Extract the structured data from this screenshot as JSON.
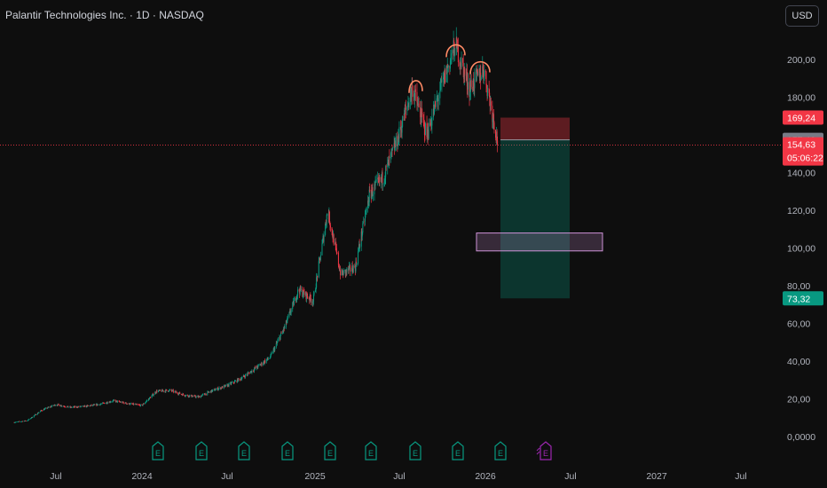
{
  "header": {
    "title": "Palantir Technologies Inc. · 1D · NASDAQ",
    "currency_button": "USD"
  },
  "chart_data": {
    "type": "candlestick",
    "title": "Palantir Technologies Inc. · 1D · NASDAQ",
    "ylim": [
      0,
      215
    ],
    "y_ticks": [
      "0,0000",
      "20,00",
      "40,00",
      "60,00",
      "80,00",
      "100,00",
      "120,00",
      "140,00",
      "180,00",
      "200,00"
    ],
    "x_ticks": [
      "Jul",
      "2024",
      "Jul",
      "2025",
      "Jul",
      "2026",
      "Jul",
      "2027",
      "Jul"
    ],
    "price_path": [
      [
        "2023-04",
        7.5
      ],
      [
        "2023-05",
        8.5
      ],
      [
        "2023-06",
        14
      ],
      [
        "2023-07",
        17
      ],
      [
        "2023-08",
        15.5
      ],
      [
        "2023-09",
        16
      ],
      [
        "2023-10",
        17
      ],
      [
        "2023-11",
        19
      ],
      [
        "2023-12",
        17.5
      ],
      [
        "2024-01",
        16.5
      ],
      [
        "2024-02",
        24
      ],
      [
        "2024-03",
        24.5
      ],
      [
        "2024-04",
        22
      ],
      [
        "2024-05",
        21
      ],
      [
        "2024-06",
        24.5
      ],
      [
        "2024-07",
        27
      ],
      [
        "2024-08",
        31
      ],
      [
        "2024-09",
        36.5
      ],
      [
        "2024-10",
        42
      ],
      [
        "2024-11",
        58
      ],
      [
        "2024-12",
        78
      ],
      [
        "2025-01",
        72
      ],
      [
        "2025-02",
        120
      ],
      [
        "2025-03",
        86
      ],
      [
        "2025-04",
        90
      ],
      [
        "2025-05",
        128
      ],
      [
        "2025-06",
        138
      ],
      [
        "2025-07",
        158
      ],
      [
        "2025-08",
        185
      ],
      [
        "2025-09",
        160
      ],
      [
        "2025-10",
        185
      ],
      [
        "2025-11",
        208
      ],
      [
        "2025-12",
        185
      ],
      [
        "2026-01",
        195
      ],
      [
        "2026-02",
        154.63
      ]
    ],
    "price_labels": [
      {
        "value": 169.24,
        "text": "169,24",
        "color": "#f23645"
      },
      {
        "value": 157.4,
        "text": "157,40",
        "color": "#787b86"
      },
      {
        "value": 154.63,
        "text": "154,63",
        "subtext": "05:06:22",
        "color": "#f23645"
      },
      {
        "value": 73.32,
        "text": "73,32",
        "color": "#089981"
      }
    ],
    "current_price": 154.63,
    "position": {
      "type": "short",
      "entry": 157.4,
      "stop": 169.24,
      "target": 73.32
    },
    "zone": {
      "low": 98.5,
      "high": 108.0
    },
    "event_markers": [
      "E",
      "E",
      "E",
      "E",
      "E",
      "E",
      "E",
      "E",
      "E",
      "E"
    ]
  },
  "colors": {
    "up": "#089981",
    "down": "#f23645",
    "zone": "#ce93d8",
    "pattern": "#ff8a65",
    "upcoming": "#9c27b0"
  }
}
